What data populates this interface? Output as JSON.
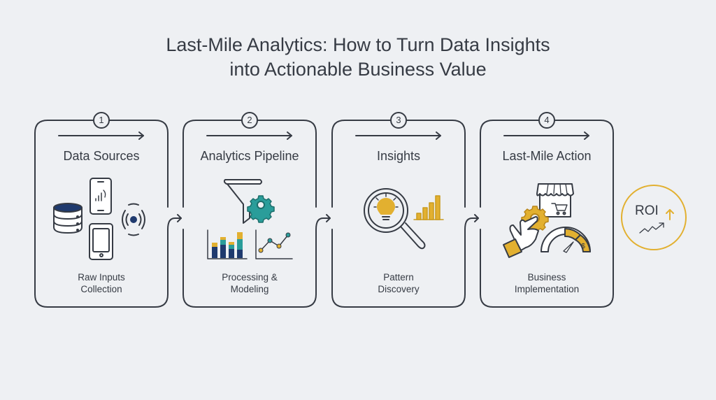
{
  "title": {
    "line1": "Last-Mile Analytics: How to Turn Data Insights",
    "line2": "into Actionable Business Value"
  },
  "steps": [
    {
      "number": "1",
      "title": "Data Sources",
      "subtitle_line1": "Raw Inputs",
      "subtitle_line2": "Collection",
      "icons": [
        "database-icon",
        "smartphone-signal-icon",
        "tablet-icon",
        "wireless-sensor-icon"
      ]
    },
    {
      "number": "2",
      "title": "Analytics Pipeline",
      "subtitle_line1": "Processing &",
      "subtitle_line2": "Modeling",
      "icons": [
        "funnel-icon",
        "gear-icon",
        "stacked-bar-chart-icon",
        "line-chart-icon"
      ]
    },
    {
      "number": "3",
      "title": "Insights",
      "subtitle_line1": "Pattern",
      "subtitle_line2": "Discovery",
      "icons": [
        "magnifier-lightbulb-icon",
        "bar-chart-icon"
      ]
    },
    {
      "number": "4",
      "title": "Last-Mile Action",
      "subtitle_line1": "Business",
      "subtitle_line2": "Implementation",
      "icons": [
        "storefront-cart-icon",
        "hand-gear-icon",
        "gauge-dollar-icon"
      ]
    }
  ],
  "result": {
    "label": "ROI",
    "icons": [
      "up-arrow-icon",
      "trend-up-icon"
    ]
  },
  "colors": {
    "background": "#eef0f3",
    "outline": "#363b44",
    "navy": "#1f3a6e",
    "teal": "#2a9d9a",
    "gold": "#e2b030"
  }
}
